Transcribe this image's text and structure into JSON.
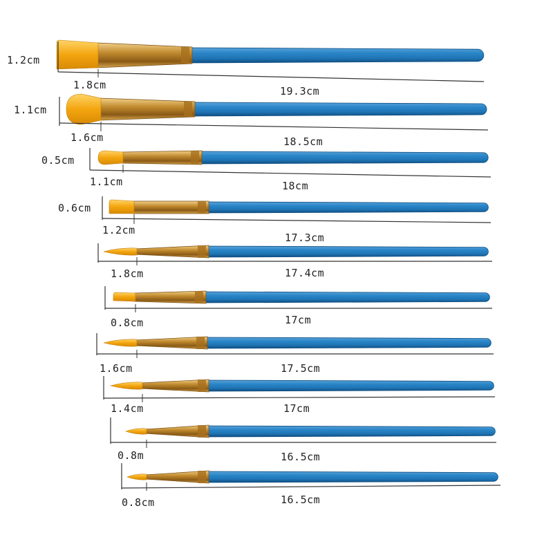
{
  "brushes": [
    {
      "type": "flat",
      "width": "1.2cm",
      "hair": "1.8cm",
      "length": "19.3cm"
    },
    {
      "type": "filbert",
      "width": "1.1cm",
      "hair": "1.6cm",
      "length": "18.5cm"
    },
    {
      "type": "filbert",
      "width": "0.5cm",
      "hair": "1.1cm",
      "length": "18cm"
    },
    {
      "type": "flat",
      "width": "0.6cm",
      "hair": "1.2cm",
      "length": "17.3cm"
    },
    {
      "type": "round",
      "width": "",
      "hair": "1.8cm",
      "length": "17.4cm"
    },
    {
      "type": "flat",
      "width": "",
      "hair": "0.8cm",
      "length": "17cm"
    },
    {
      "type": "round",
      "width": "",
      "hair": "1.6cm",
      "length": "17.5cm"
    },
    {
      "type": "round",
      "width": "",
      "hair": "1.4cm",
      "length": "17cm"
    },
    {
      "type": "round",
      "width": "",
      "hair": "0.8m",
      "length": "16.5cm"
    },
    {
      "type": "round",
      "width": "",
      "hair": "0.8cm",
      "length": "16.5cm"
    }
  ],
  "colors": {
    "handle": "#1f74b4",
    "handle_light": "#5aa3d8",
    "handle_dark": "#0f4e82",
    "ferrule": "#c08a2e",
    "ferrule_light": "#f1d08a",
    "bristle": "#f3a50f",
    "bristle_light": "#ffd466"
  }
}
